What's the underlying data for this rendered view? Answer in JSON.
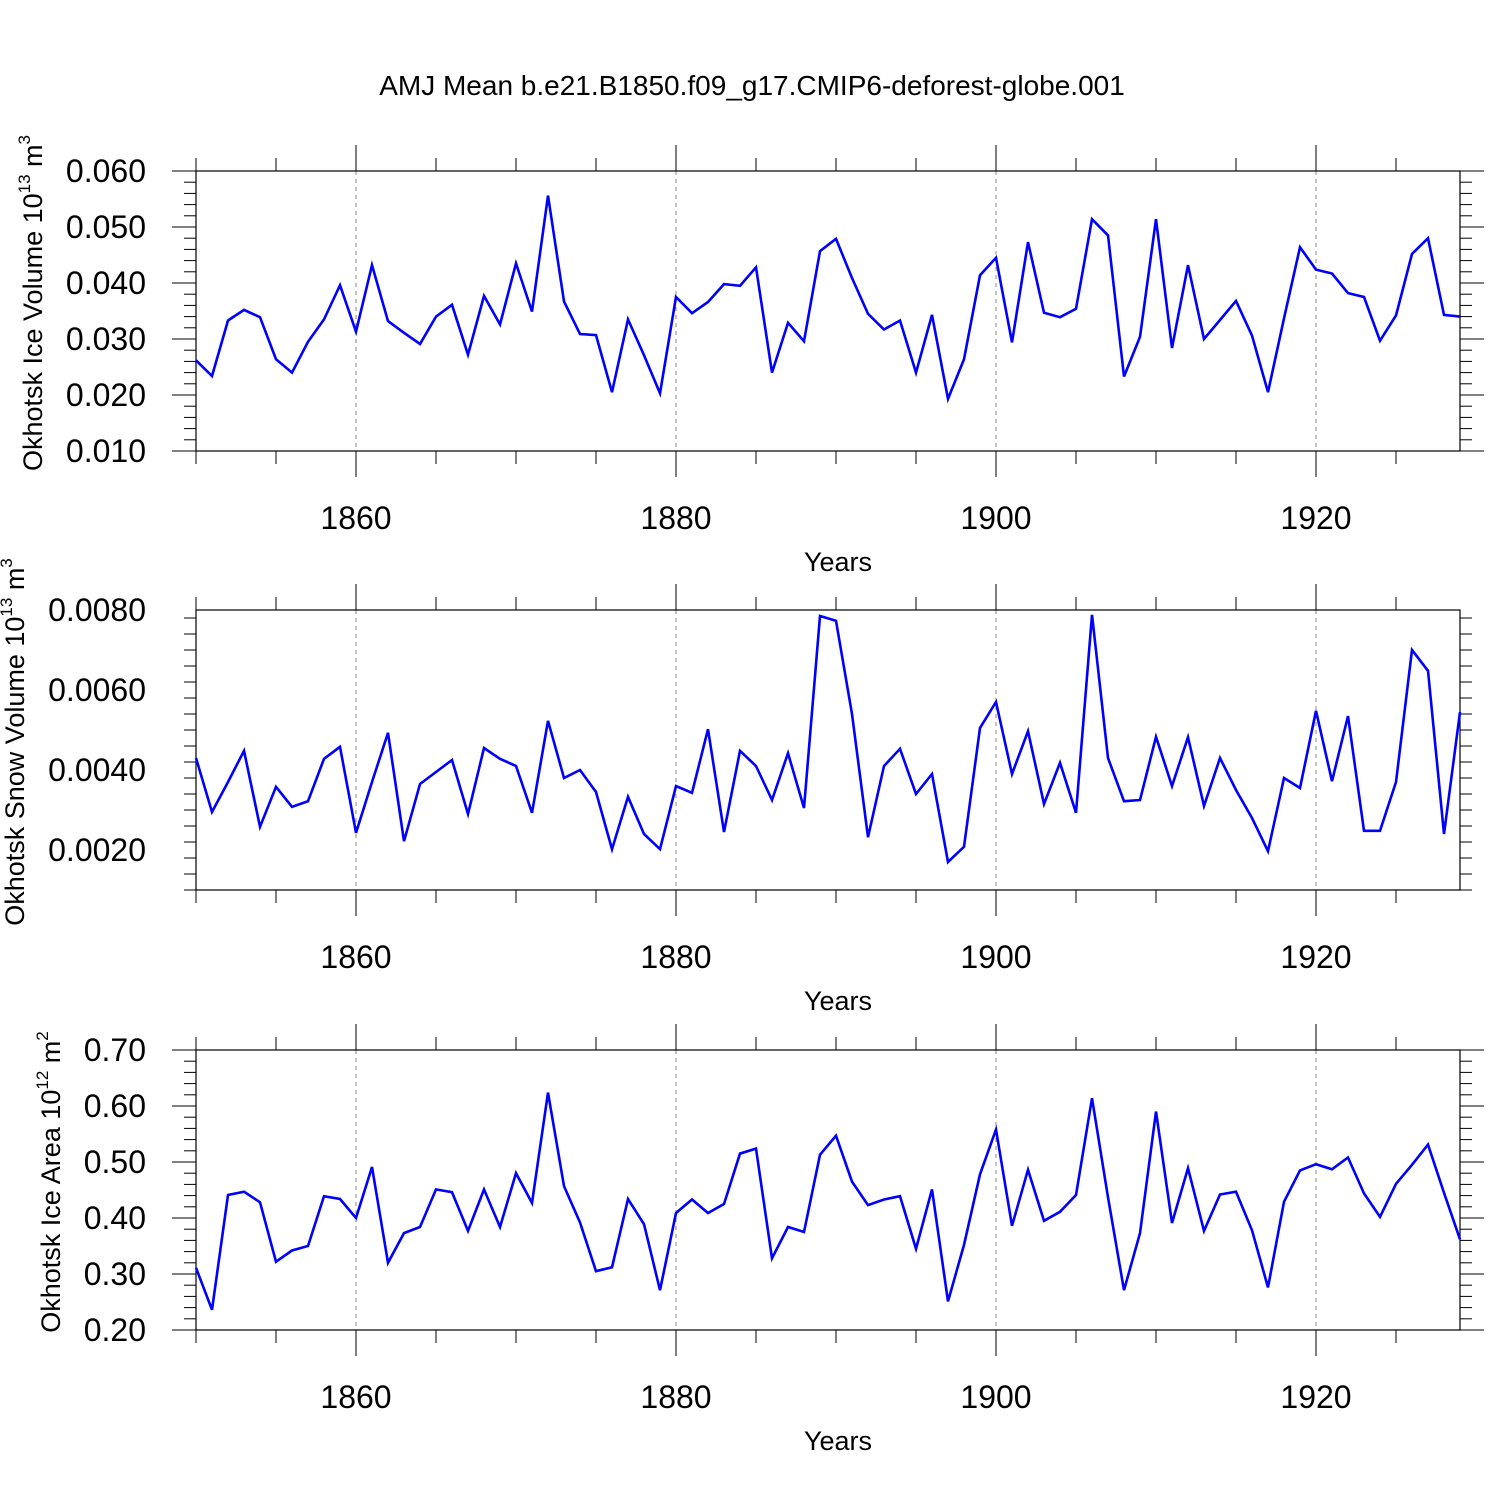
{
  "title": "AMJ Mean b.e21.B1850.f09_g17.CMIP6-deforest-globe.001",
  "chart_data": [
    {
      "type": "line",
      "name": "ice-volume",
      "ylabel_main": "Okhotsk Ice Volume 10",
      "ylabel_exp": "13",
      "ylabel_unit": " m",
      "ylabel_unit_exp": "3",
      "xlabel": "Years",
      "xlim": [
        1850,
        1929
      ],
      "ylim": [
        0.01,
        0.06
      ],
      "yticks": [
        "0.010",
        "0.020",
        "0.030",
        "0.040",
        "0.050",
        "0.060"
      ],
      "ytick_values": [
        0.01,
        0.02,
        0.03,
        0.04,
        0.05,
        0.06
      ],
      "xticks": [
        "1860",
        "1880",
        "1900",
        "1920"
      ],
      "xtick_values": [
        1860,
        1880,
        1900,
        1920
      ],
      "color": "#0000ff",
      "series": [
        {
          "name": "Okhotsk Ice Volume",
          "x_start": 1850,
          "values": [
            0.0262,
            0.0234,
            0.0333,
            0.0352,
            0.0339,
            0.0264,
            0.024,
            0.0295,
            0.0335,
            0.0396,
            0.0313,
            0.0432,
            0.0332,
            0.0311,
            0.0291,
            0.034,
            0.0361,
            0.0272,
            0.0377,
            0.0326,
            0.0435,
            0.0349,
            0.0556,
            0.0367,
            0.0309,
            0.0307,
            0.0205,
            0.0335,
            0.0271,
            0.0203,
            0.0375,
            0.0346,
            0.0366,
            0.0398,
            0.0395,
            0.0428,
            0.024,
            0.0329,
            0.0296,
            0.0457,
            0.0479,
            0.0409,
            0.0345,
            0.0317,
            0.0333,
            0.024,
            0.0343,
            0.0193,
            0.0264,
            0.0414,
            0.0445,
            0.0294,
            0.0473,
            0.0347,
            0.0339,
            0.0354,
            0.0514,
            0.0485,
            0.0233,
            0.0304,
            0.0514,
            0.0284,
            0.0432,
            0.03,
            0.0334,
            0.0368,
            0.0306,
            0.0205,
            0.0337,
            0.0464,
            0.0424,
            0.0417,
            0.0382,
            0.0375,
            0.0297,
            0.0342,
            0.0452,
            0.048,
            0.0343,
            0.034
          ]
        }
      ]
    },
    {
      "type": "line",
      "name": "snow-volume",
      "ylabel_main": "Okhotsk Snow Volume 10",
      "ylabel_exp": "13",
      "ylabel_unit": " m",
      "ylabel_unit_exp": "3",
      "xlabel": "Years",
      "xlim": [
        1850,
        1929
      ],
      "ylim": [
        0.001,
        0.008
      ],
      "yticks": [
        "0.0020",
        "0.0040",
        "0.0060",
        "0.0080"
      ],
      "ytick_values": [
        0.002,
        0.004,
        0.006,
        0.008
      ],
      "xticks": [
        "1860",
        "1880",
        "1900",
        "1920"
      ],
      "xtick_values": [
        1860,
        1880,
        1900,
        1920
      ],
      "color": "#0000ff",
      "series": [
        {
          "name": "Okhotsk Snow Volume",
          "x_start": 1850,
          "values": [
            0.0043,
            0.00295,
            0.0037,
            0.00448,
            0.00258,
            0.00358,
            0.00308,
            0.00322,
            0.00428,
            0.00458,
            0.00243,
            0.0037,
            0.00493,
            0.00222,
            0.00365,
            0.00395,
            0.00425,
            0.0029,
            0.00455,
            0.00428,
            0.0041,
            0.00293,
            0.00523,
            0.0038,
            0.004,
            0.00345,
            0.00202,
            0.00333,
            0.0024,
            0.00202,
            0.0036,
            0.00343,
            0.00502,
            0.00245,
            0.00448,
            0.0041,
            0.00325,
            0.00442,
            0.00305,
            0.00785,
            0.00773,
            0.0054,
            0.00232,
            0.0041,
            0.00453,
            0.0034,
            0.0039,
            0.0017,
            0.00208,
            0.00505,
            0.0057,
            0.0039,
            0.00497,
            0.00315,
            0.00418,
            0.00293,
            0.00788,
            0.0043,
            0.00322,
            0.00325,
            0.00483,
            0.0036,
            0.00482,
            0.0031,
            0.0043,
            0.0035,
            0.0028,
            0.00197,
            0.0038,
            0.00355,
            0.00548,
            0.00372,
            0.00535,
            0.00248,
            0.00248,
            0.0037,
            0.007,
            0.00648,
            0.0024,
            0.00545
          ]
        }
      ]
    },
    {
      "type": "line",
      "name": "ice-area",
      "ylabel_main": "Okhotsk Ice Area 10",
      "ylabel_exp": "12",
      "ylabel_unit": " m",
      "ylabel_unit_exp": "2",
      "xlabel": "Years",
      "xlim": [
        1850,
        1929
      ],
      "ylim": [
        0.2,
        0.7
      ],
      "yticks": [
        "0.20",
        "0.30",
        "0.40",
        "0.50",
        "0.60",
        "0.70"
      ],
      "ytick_values": [
        0.2,
        0.3,
        0.4,
        0.5,
        0.6,
        0.7
      ],
      "xticks": [
        "1860",
        "1880",
        "1900",
        "1920"
      ],
      "xtick_values": [
        1860,
        1880,
        1900,
        1920
      ],
      "color": "#0000ff",
      "series": [
        {
          "name": "Okhotsk Ice Area",
          "x_start": 1850,
          "values": [
            0.311,
            0.236,
            0.441,
            0.447,
            0.428,
            0.322,
            0.342,
            0.35,
            0.439,
            0.434,
            0.4,
            0.491,
            0.32,
            0.373,
            0.384,
            0.451,
            0.446,
            0.377,
            0.451,
            0.384,
            0.48,
            0.427,
            0.624,
            0.457,
            0.392,
            0.305,
            0.312,
            0.434,
            0.389,
            0.271,
            0.409,
            0.433,
            0.409,
            0.425,
            0.515,
            0.524,
            0.328,
            0.384,
            0.375,
            0.513,
            0.547,
            0.465,
            0.423,
            0.433,
            0.439,
            0.345,
            0.451,
            0.251,
            0.352,
            0.478,
            0.558,
            0.386,
            0.486,
            0.395,
            0.411,
            0.441,
            0.614,
            0.437,
            0.271,
            0.373,
            0.59,
            0.391,
            0.489,
            0.377,
            0.442,
            0.447,
            0.378,
            0.276,
            0.429,
            0.485,
            0.496,
            0.487,
            0.508,
            0.444,
            0.402,
            0.461,
            0.495,
            0.531,
            0.445,
            0.362
          ]
        }
      ]
    }
  ]
}
